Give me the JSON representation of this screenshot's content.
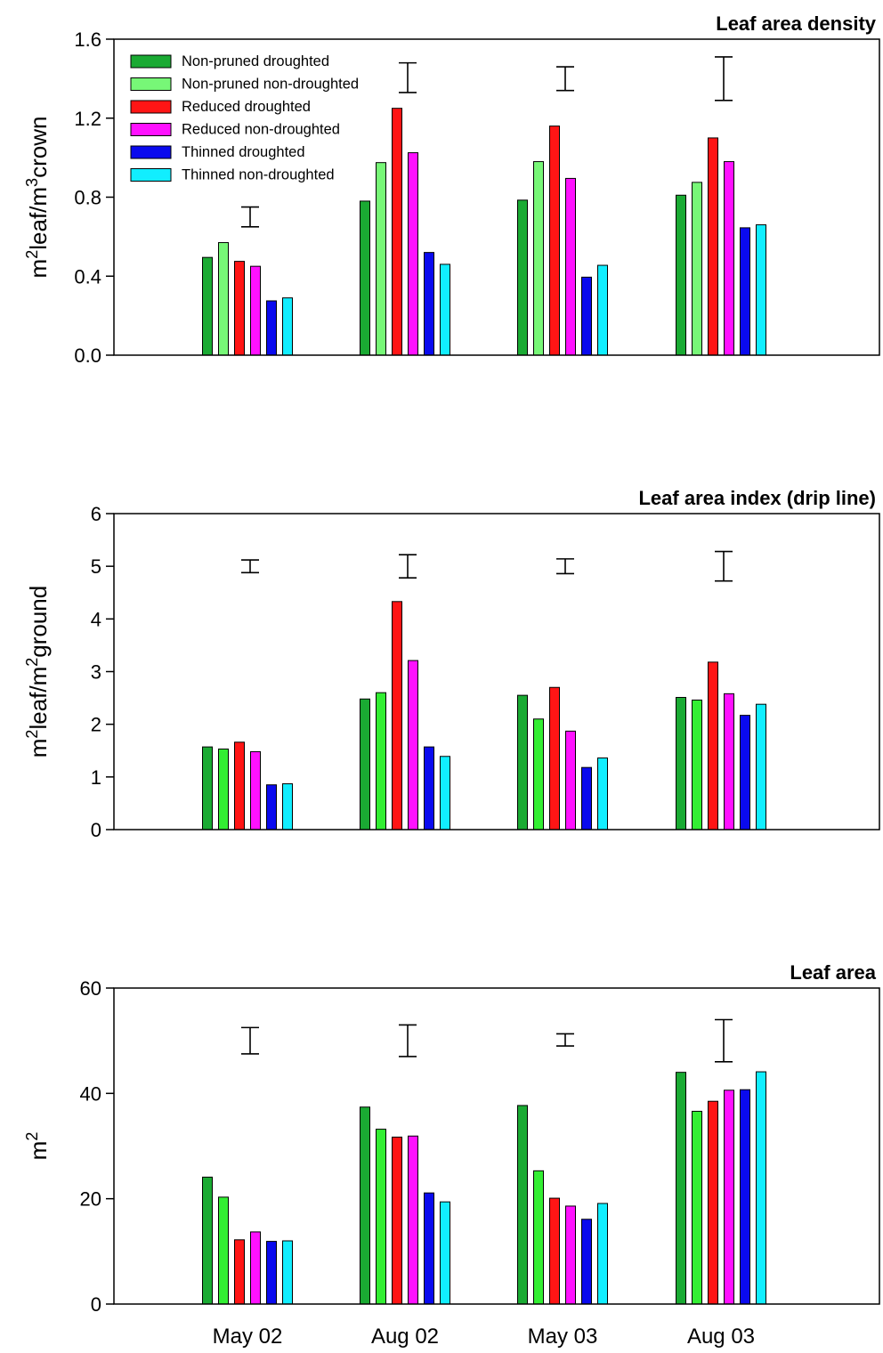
{
  "chart_data": [
    {
      "type": "bar",
      "title": "Leaf area density",
      "ylabel": "m²leaf/m³crown",
      "ylabel_parts": [
        "m",
        "2",
        "leaf/m",
        "3",
        "crown"
      ],
      "ylim": [
        0,
        1.6
      ],
      "yticks": [
        "0.0",
        "0.4",
        "0.8",
        "1.2",
        "1.6"
      ],
      "grid": false,
      "legend_position": "top-left",
      "categories": [
        "May 02",
        "Aug 02",
        "May 03",
        "Aug 03"
      ],
      "error_bars": [
        [
          0.65,
          0.75
        ],
        [
          1.33,
          1.48
        ],
        [
          1.34,
          1.46
        ],
        [
          1.29,
          1.51
        ]
      ],
      "series": [
        {
          "name": "Non-pruned droughted",
          "color": "#1aaa33",
          "values": [
            0.495,
            0.78,
            0.785,
            0.81
          ]
        },
        {
          "name": "Non-pruned non-droughted",
          "color": "#77f777",
          "values": [
            0.57,
            0.975,
            0.98,
            0.875
          ]
        },
        {
          "name": "Reduced droughted",
          "color": "#ff1515",
          "values": [
            0.475,
            1.25,
            1.16,
            1.1
          ]
        },
        {
          "name": "Reduced non-droughted",
          "color": "#ff11ff",
          "values": [
            0.45,
            1.025,
            0.895,
            0.98
          ]
        },
        {
          "name": "Thinned droughted",
          "color": "#0a0aee",
          "values": [
            0.275,
            0.52,
            0.395,
            0.645
          ]
        },
        {
          "name": "Thinned non-droughted",
          "color": "#11eeff",
          "values": [
            0.29,
            0.46,
            0.455,
            0.66
          ]
        }
      ]
    },
    {
      "type": "bar",
      "title": "Leaf area index (drip line)",
      "ylabel": "m²leaf/m²ground",
      "ylabel_parts": [
        "m",
        "2",
        "leaf/m",
        "2",
        "ground"
      ],
      "ylim": [
        0,
        6
      ],
      "yticks": [
        "0",
        "1",
        "2",
        "3",
        "4",
        "5",
        "6"
      ],
      "grid": false,
      "categories": [
        "May 02",
        "Aug 02",
        "May 03",
        "Aug 03"
      ],
      "error_bars": [
        [
          4.88,
          5.12
        ],
        [
          4.78,
          5.22
        ],
        [
          4.86,
          5.14
        ],
        [
          4.72,
          5.28
        ]
      ],
      "series": [
        {
          "name": "Non-pruned droughted",
          "color": "#1aaa33",
          "values": [
            1.57,
            2.48,
            2.55,
            2.51
          ]
        },
        {
          "name": "Non-pruned non-droughted",
          "color": "#33ee33",
          "values": [
            1.53,
            2.6,
            2.1,
            2.46
          ]
        },
        {
          "name": "Reduced droughted",
          "color": "#ff1515",
          "values": [
            1.66,
            4.33,
            2.7,
            3.18
          ]
        },
        {
          "name": "Reduced non-droughted",
          "color": "#ff11ff",
          "values": [
            1.48,
            3.21,
            1.87,
            2.58
          ]
        },
        {
          "name": "Thinned droughted",
          "color": "#0a0aee",
          "values": [
            0.85,
            1.57,
            1.18,
            2.17
          ]
        },
        {
          "name": "Thinned non-droughted",
          "color": "#11eeff",
          "values": [
            0.87,
            1.39,
            1.36,
            2.38
          ]
        }
      ]
    },
    {
      "type": "bar",
      "title": "Leaf area",
      "ylabel": "m²",
      "ylabel_parts": [
        "m",
        "2"
      ],
      "ylim": [
        0,
        60
      ],
      "yticks": [
        "0",
        "20",
        "40",
        "60"
      ],
      "grid": false,
      "categories": [
        "May 02",
        "Aug 02",
        "May 03",
        "Aug 03"
      ],
      "error_bars": [
        [
          47.5,
          52.5
        ],
        [
          47.0,
          53.0
        ],
        [
          49.0,
          51.3
        ],
        [
          46.0,
          54.0
        ]
      ],
      "series": [
        {
          "name": "Non-pruned droughted",
          "color": "#1aaa33",
          "values": [
            24.1,
            37.4,
            37.7,
            44.0
          ]
        },
        {
          "name": "Non-pruned non-droughted",
          "color": "#33ee33",
          "values": [
            20.3,
            33.2,
            25.3,
            36.6
          ]
        },
        {
          "name": "Reduced droughted",
          "color": "#ff1515",
          "values": [
            12.2,
            31.7,
            20.1,
            38.5
          ]
        },
        {
          "name": "Reduced non-droughted",
          "color": "#ff11ff",
          "values": [
            13.7,
            31.9,
            18.6,
            40.6
          ]
        },
        {
          "name": "Thinned droughted",
          "color": "#0a0aee",
          "values": [
            11.9,
            21.1,
            16.1,
            40.7
          ]
        },
        {
          "name": "Thinned non-droughted",
          "color": "#11eeff",
          "values": [
            12.0,
            19.4,
            19.1,
            44.1
          ]
        }
      ]
    }
  ]
}
